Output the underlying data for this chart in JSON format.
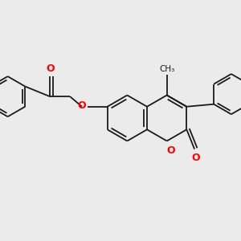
{
  "background_color": "#ebebeb",
  "bond_color": "#1a1a1a",
  "oxygen_color": "#ff0000",
  "line_width": 1.3,
  "figsize": [
    3.0,
    3.0
  ],
  "dpi": 100,
  "xlim": [
    0,
    10
  ],
  "ylim": [
    0,
    10
  ]
}
